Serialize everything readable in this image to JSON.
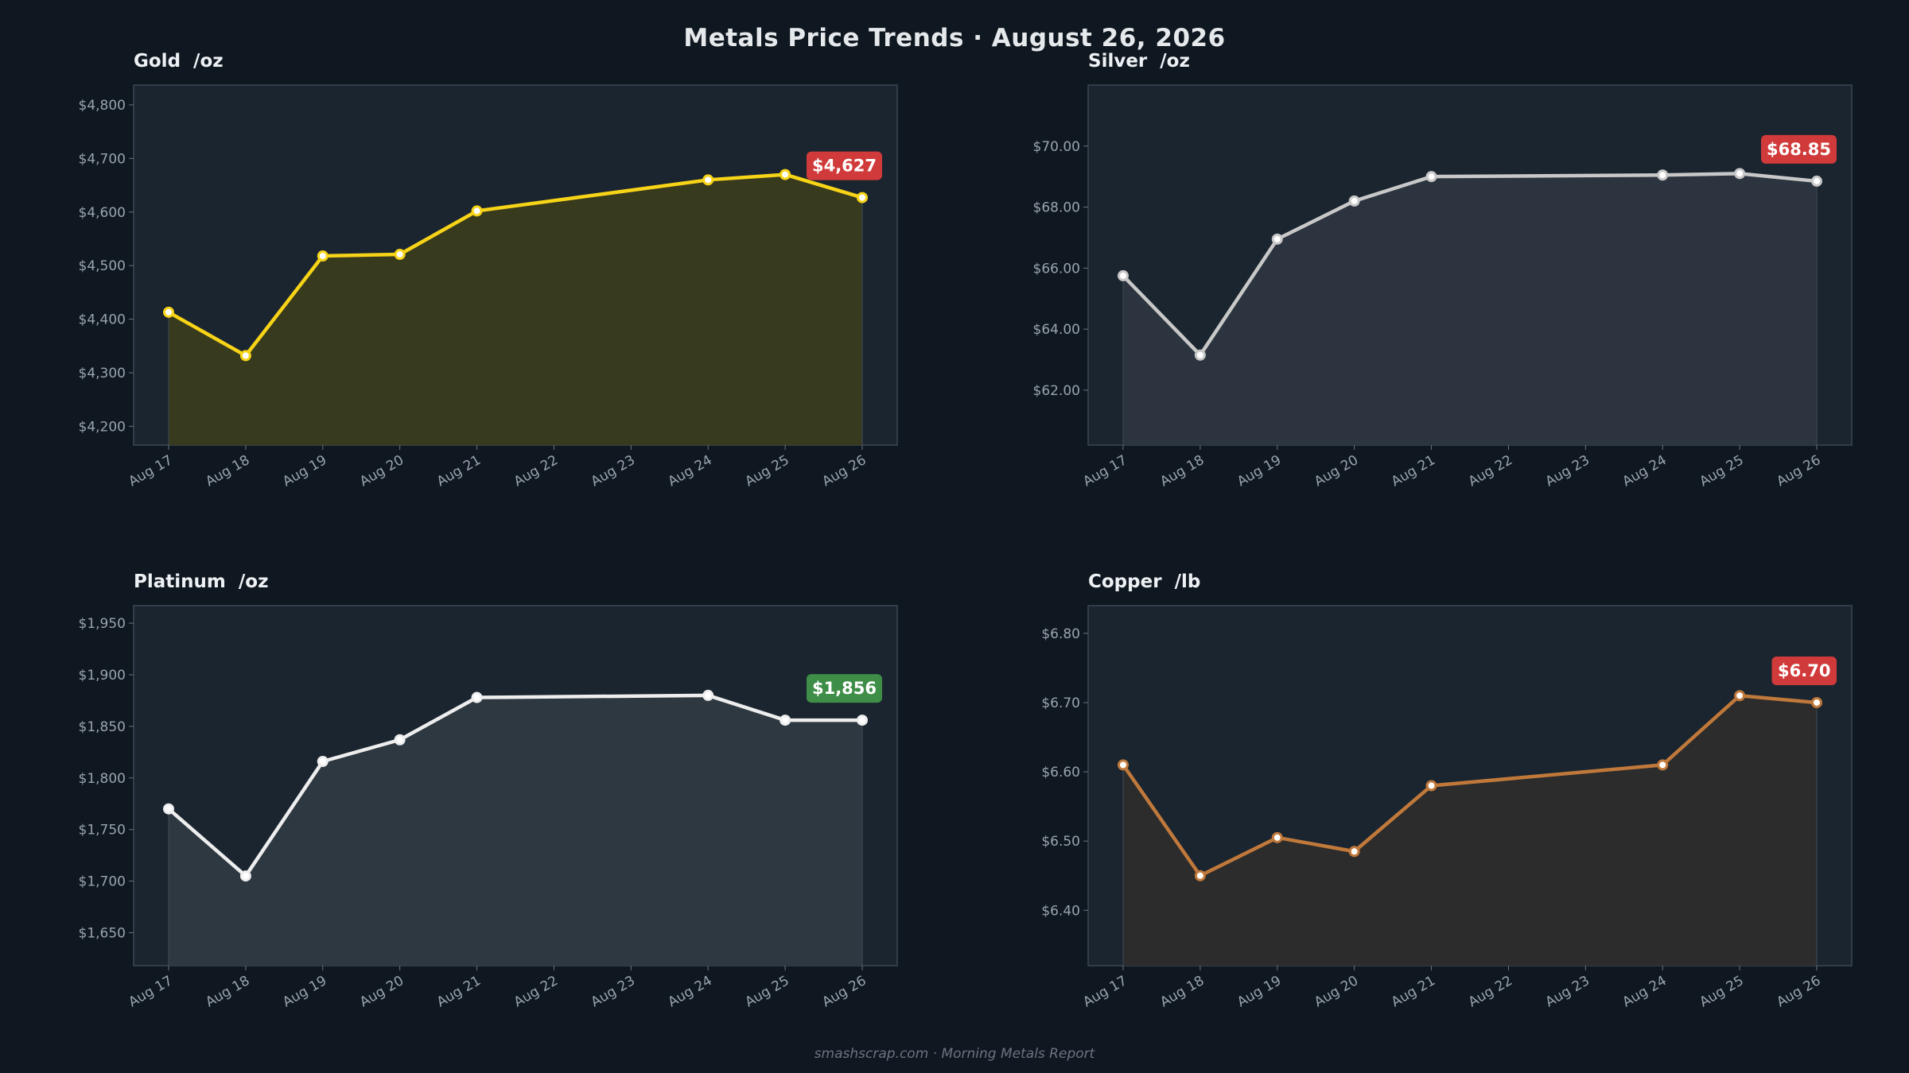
{
  "header": {
    "title": "Metals Price Trends  ·  August 26, 2026"
  },
  "footer": {
    "text": "smashscrap.com  ·  Morning Metals Report"
  },
  "colors": {
    "background": "#0f1720",
    "plot_background": "#1b2530",
    "badge_up": "#d13a3a",
    "badge_down": "#3e8e47"
  },
  "chart_data": [
    {
      "type": "line",
      "title": "Gold  /oz",
      "categories": [
        "Aug 17",
        "Aug 18",
        "Aug 19",
        "Aug 20",
        "Aug 21",
        "Aug 22",
        "Aug 23",
        "Aug 24",
        "Aug 25",
        "Aug 26"
      ],
      "x": [
        "Aug 17",
        "Aug 18",
        "Aug 19",
        "Aug 20",
        "Aug 21",
        "Aug 24",
        "Aug 25",
        "Aug 26"
      ],
      "series": [
        {
          "values": [
            4413,
            4332,
            4518,
            4521,
            4602,
            4660,
            4670,
            4627
          ]
        }
      ],
      "ylim": [
        4165,
        4837
      ],
      "yticks": [
        4200,
        4300,
        4400,
        4500,
        4600,
        4700,
        4800
      ],
      "ytick_labels": [
        "$4,200",
        "$4,300",
        "$4,400",
        "$4,500",
        "$4,600",
        "$4,700",
        "$4,800"
      ],
      "last_value_label": "$4,627",
      "badge_color": "#d13a3a",
      "line_color": "#f7d417",
      "fill_color": "#3a3b1e",
      "grid": false
    },
    {
      "type": "line",
      "title": "Silver  /oz",
      "categories": [
        "Aug 17",
        "Aug 18",
        "Aug 19",
        "Aug 20",
        "Aug 21",
        "Aug 22",
        "Aug 23",
        "Aug 24",
        "Aug 25",
        "Aug 26"
      ],
      "x": [
        "Aug 17",
        "Aug 18",
        "Aug 19",
        "Aug 20",
        "Aug 21",
        "Aug 24",
        "Aug 25",
        "Aug 26"
      ],
      "series": [
        {
          "values": [
            65.75,
            63.15,
            66.95,
            68.2,
            69.0,
            69.05,
            69.1,
            68.85
          ]
        }
      ],
      "ylim": [
        60.2,
        72.0
      ],
      "yticks": [
        62,
        64,
        66,
        68,
        70
      ],
      "ytick_labels": [
        "$62.00",
        "$64.00",
        "$66.00",
        "$68.00",
        "$70.00"
      ],
      "last_value_label": "$68.85",
      "badge_color": "#d13a3a",
      "line_color": "#c8c8c8",
      "fill_color": "#2c3540",
      "grid": false
    },
    {
      "type": "line",
      "title": "Platinum  /oz",
      "categories": [
        "Aug 17",
        "Aug 18",
        "Aug 19",
        "Aug 20",
        "Aug 21",
        "Aug 22",
        "Aug 23",
        "Aug 24",
        "Aug 25",
        "Aug 26"
      ],
      "x": [
        "Aug 17",
        "Aug 18",
        "Aug 19",
        "Aug 20",
        "Aug 21",
        "Aug 24",
        "Aug 25",
        "Aug 26"
      ],
      "series": [
        {
          "values": [
            1770,
            1705,
            1816,
            1837,
            1878,
            1880,
            1856,
            1856
          ]
        }
      ],
      "ylim": [
        1618,
        1967
      ],
      "yticks": [
        1650,
        1700,
        1750,
        1800,
        1850,
        1900,
        1950
      ],
      "ytick_labels": [
        "$1,650",
        "$1,700",
        "$1,750",
        "$1,800",
        "$1,850",
        "$1,900",
        "$1,950"
      ],
      "last_value_label": "$1,856",
      "badge_color": "#3e8e47",
      "line_color": "#eeeeee",
      "fill_color": "#2f3942",
      "grid": false
    },
    {
      "type": "line",
      "title": "Copper  /lb",
      "categories": [
        "Aug 17",
        "Aug 18",
        "Aug 19",
        "Aug 20",
        "Aug 21",
        "Aug 22",
        "Aug 23",
        "Aug 24",
        "Aug 25",
        "Aug 26"
      ],
      "x": [
        "Aug 17",
        "Aug 18",
        "Aug 19",
        "Aug 20",
        "Aug 21",
        "Aug 24",
        "Aug 25",
        "Aug 26"
      ],
      "series": [
        {
          "values": [
            6.61,
            6.45,
            6.505,
            6.485,
            6.58,
            6.61,
            6.71,
            6.7
          ]
        }
      ],
      "ylim": [
        6.32,
        6.84
      ],
      "yticks": [
        6.4,
        6.5,
        6.6,
        6.7,
        6.8
      ],
      "ytick_labels": [
        "$6.40",
        "$6.50",
        "$6.60",
        "$6.70",
        "$6.80"
      ],
      "last_value_label": "$6.70",
      "badge_color": "#d13a3a",
      "line_color": "#c0793a",
      "fill_color": "#2d2c2c",
      "grid": false
    }
  ]
}
